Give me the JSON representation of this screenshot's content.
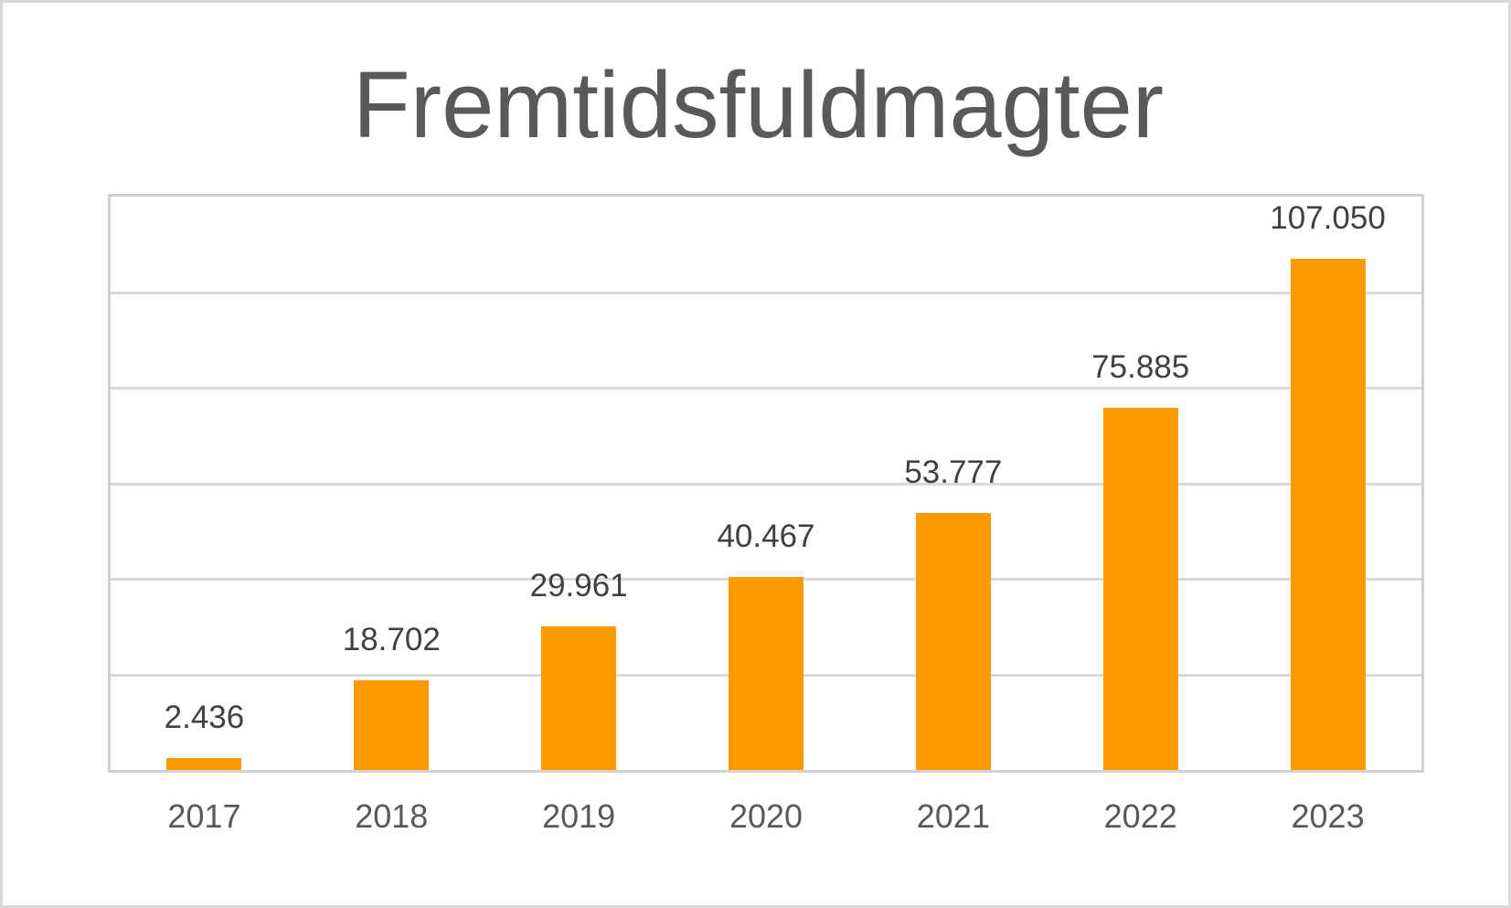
{
  "title": "Fremtidsfuldmagter",
  "colors": {
    "bar": "#ff9900",
    "title": "#595959",
    "value_label": "#404040",
    "axis_label": "#595959",
    "gridline": "#d9d9d9",
    "border": "#d9d9d9"
  },
  "chart_data": {
    "type": "bar",
    "title": "Fremtidsfuldmagter",
    "xlabel": "",
    "ylabel": "",
    "categories": [
      "2017",
      "2018",
      "2019",
      "2020",
      "2021",
      "2022",
      "2023"
    ],
    "values": [
      2436,
      18702,
      29961,
      40467,
      53777,
      75885,
      107050
    ],
    "value_labels": [
      "2.436",
      "18.702",
      "29.961",
      "40.467",
      "53.777",
      "75.885",
      "107.050"
    ],
    "ylim": [
      0,
      120000
    ],
    "y_gridlines": [
      20000,
      40000,
      60000,
      80000,
      100000
    ],
    "y_tick_labels_visible": false,
    "grid": true,
    "legend": "none"
  }
}
